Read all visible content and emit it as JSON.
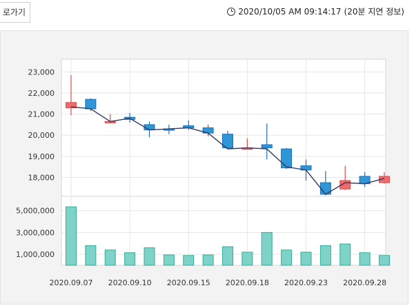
{
  "header": {
    "back_label": "로가기",
    "timestamp": "2020/10/05 AM 09:14:17",
    "delay_note": "(20분 지연 정보)"
  },
  "colors": {
    "up": "#f06b6b",
    "up_border": "#d64b4b",
    "down": "#2f96d8",
    "down_border": "#1f6fb0",
    "volume": "#7dd3c7",
    "volume_border": "#3aa99a",
    "line": "#2f3a60"
  },
  "chart_data": [
    {
      "type": "candlestick",
      "title": "",
      "y_ticks": [
        23000,
        22000,
        21000,
        20000,
        19000,
        18000
      ],
      "y_tick_labels": [
        "23,000",
        "22,000",
        "21,000",
        "20,000",
        "19,000",
        "18,000"
      ],
      "ylim": [
        17100,
        23600
      ],
      "grid": true,
      "candles": [
        {
          "open": 21300,
          "close": 21550,
          "high": 22850,
          "low": 20950
        },
        {
          "open": 21700,
          "close": 21250,
          "high": 21750,
          "low": 21150
        },
        {
          "open": 20650,
          "close": 20650,
          "high": 21000,
          "low": 20550
        },
        {
          "open": 20850,
          "close": 20750,
          "high": 21050,
          "low": 20600
        },
        {
          "open": 20500,
          "close": 20250,
          "high": 20650,
          "low": 19900
        },
        {
          "open": 20300,
          "close": 20250,
          "high": 20500,
          "low": 20050
        },
        {
          "open": 20450,
          "close": 20350,
          "high": 20700,
          "low": 20250
        },
        {
          "open": 20350,
          "close": 20100,
          "high": 20500,
          "low": 19950
        },
        {
          "open": 20050,
          "close": 19400,
          "high": 20200,
          "low": 19350
        },
        {
          "open": 19400,
          "close": 19400,
          "high": 19850,
          "low": 19350
        },
        {
          "open": 19550,
          "close": 19400,
          "high": 20550,
          "low": 18850
        },
        {
          "open": 19350,
          "close": 18450,
          "high": 19400,
          "low": 18400
        },
        {
          "open": 18550,
          "close": 18350,
          "high": 18850,
          "low": 17850
        },
        {
          "open": 17750,
          "close": 17200,
          "high": 18300,
          "low": 17150
        },
        {
          "open": 17450,
          "close": 17850,
          "high": 18550,
          "low": 17400
        },
        {
          "open": 18050,
          "close": 17700,
          "high": 18250,
          "low": 17550
        },
        {
          "open": 17750,
          "close": 18050,
          "high": 18250,
          "low": 17700
        }
      ],
      "close_line": [
        21350,
        21250,
        20650,
        20800,
        20250,
        20300,
        20350,
        20100,
        19350,
        19400,
        19350,
        18500,
        18350,
        17200,
        17750,
        17700,
        17950
      ]
    },
    {
      "type": "bar",
      "title": "",
      "y_ticks": [
        5000000,
        3000000,
        1000000
      ],
      "y_tick_labels": [
        "5,000,000",
        "3,000,000",
        "1,000,000"
      ],
      "ylim": [
        0,
        5800000
      ],
      "categories_labeled": [
        "2020.09.07",
        "2020.09.10",
        "2020.09.15",
        "2020.09.18",
        "2020.09.23",
        "2020.09.28"
      ],
      "values": [
        5350000,
        1800000,
        1400000,
        1150000,
        1600000,
        950000,
        900000,
        950000,
        1700000,
        1200000,
        3000000,
        1400000,
        1200000,
        1800000,
        1950000,
        1150000,
        900000
      ]
    }
  ]
}
